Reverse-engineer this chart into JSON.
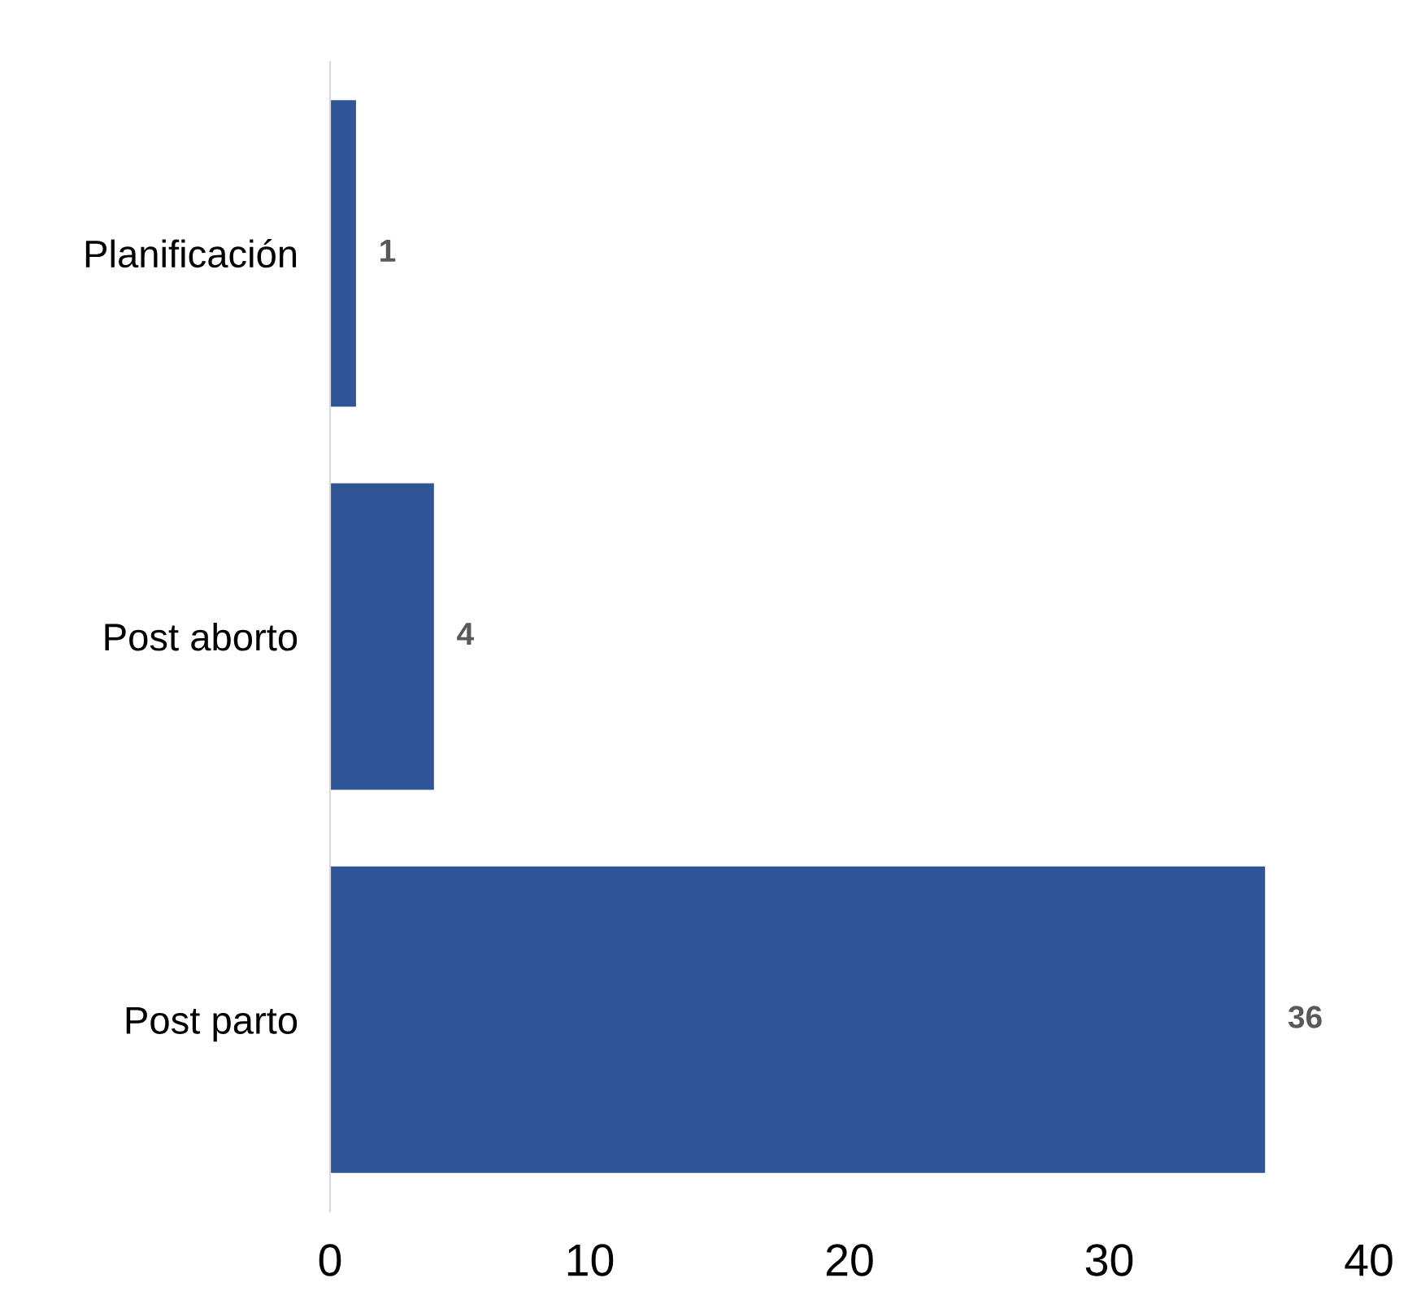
{
  "chart_data": {
    "type": "bar",
    "orientation": "horizontal",
    "categories": [
      "Planificación",
      "Post aborto",
      "Post parto"
    ],
    "values": [
      1,
      4,
      36
    ],
    "color": "#2f5597",
    "xlim": [
      0,
      40
    ],
    "xticks": [
      0,
      10,
      20,
      30,
      40
    ],
    "grid": false,
    "data_labels": true
  }
}
